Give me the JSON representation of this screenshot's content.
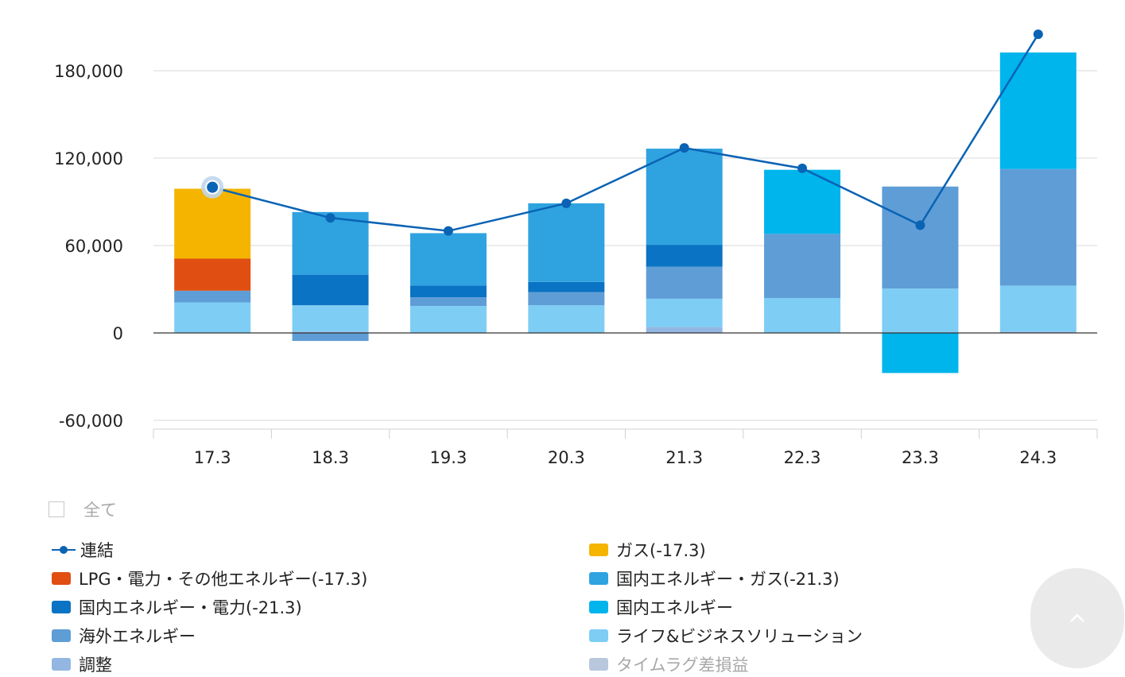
{
  "chart_data": {
    "type": "bar",
    "stacked": true,
    "categories": [
      "17.3",
      "18.3",
      "19.3",
      "20.3",
      "21.3",
      "22.3",
      "23.3",
      "24.3"
    ],
    "yticks": [
      "180,000",
      "120,000",
      "60,000",
      "0",
      "-60,000"
    ],
    "ytick_values": [
      180000,
      120000,
      60000,
      0,
      -60000
    ],
    "ylim": [
      -60000,
      205000
    ],
    "grid": true,
    "legend_placement": "bottom",
    "series": [
      {
        "name": "調整",
        "color": "#93b7e2",
        "values": [
          0,
          1000,
          0,
          0,
          4000,
          0,
          500,
          1000
        ]
      },
      {
        "name": "ライフ&ビジネスソリューション",
        "color": "#7ecdf4",
        "values": [
          21000,
          18000,
          18500,
          19000,
          19500,
          24000,
          30000,
          31500
        ]
      },
      {
        "name": "海外エネルギー",
        "color": "#5f9dd6",
        "values": [
          8000,
          -5500,
          6000,
          9000,
          22000,
          44000,
          70000,
          80000
        ]
      },
      {
        "name": "国内エネルギー・電力(-21.3)",
        "color": "#0a73c3",
        "values": [
          0,
          21000,
          8000,
          7000,
          15000,
          0,
          0,
          0
        ]
      },
      {
        "name": "国内エネルギー・ガス(-21.3)",
        "color": "#2fa3e0",
        "values": [
          0,
          43000,
          36000,
          54000,
          66000,
          0,
          0,
          0
        ]
      },
      {
        "name": "国内エネルギー",
        "color": "#00b4ec",
        "values": [
          0,
          0,
          0,
          0,
          0,
          44000,
          -27500,
          80000
        ]
      },
      {
        "name": "LPG・電力・その他エネルギー(-17.3)",
        "color": "#e04e11",
        "values": [
          22000,
          0,
          0,
          0,
          0,
          0,
          0,
          0
        ]
      },
      {
        "name": "ガス(-17.3)",
        "color": "#f5b400",
        "values": [
          48000,
          0,
          0,
          0,
          0,
          0,
          0,
          0
        ]
      },
      {
        "name": "タイムラグ差損益",
        "color": "#b8c7dc",
        "values": [
          0,
          0,
          0,
          0,
          0,
          0,
          0,
          0
        ],
        "hidden": true
      }
    ],
    "line": {
      "name": "連結",
      "color": "#0a63b4",
      "values": [
        100000,
        79000,
        70000,
        89000,
        127000,
        113000,
        74000,
        205000
      ],
      "highlight_index": 0
    }
  },
  "legend": {
    "all_label": "全て",
    "items": [
      {
        "label": "連結",
        "kind": "line",
        "color": "#0a63b4"
      },
      {
        "label": "ガス(-17.3)",
        "kind": "box",
        "color": "#f5b400"
      },
      {
        "label": "LPG・電力・その他エネルギー(-17.3)",
        "kind": "box",
        "color": "#e04e11"
      },
      {
        "label": "国内エネルギー・ガス(-21.3)",
        "kind": "box",
        "color": "#2fa3e0"
      },
      {
        "label": "国内エネルギー・電力(-21.3)",
        "kind": "box",
        "color": "#0a73c3"
      },
      {
        "label": "国内エネルギー",
        "kind": "box",
        "color": "#00b4ec"
      },
      {
        "label": "海外エネルギー",
        "kind": "box",
        "color": "#5f9dd6"
      },
      {
        "label": "ライフ&ビジネスソリューション",
        "kind": "box",
        "color": "#7ecdf4"
      },
      {
        "label": "調整",
        "kind": "box",
        "color": "#93b7e2"
      },
      {
        "label": "タイムラグ差損益",
        "kind": "box",
        "color": "#b8c7dc",
        "muted": true
      }
    ]
  },
  "scroll_top": {
    "icon": "chevron-up-icon"
  }
}
